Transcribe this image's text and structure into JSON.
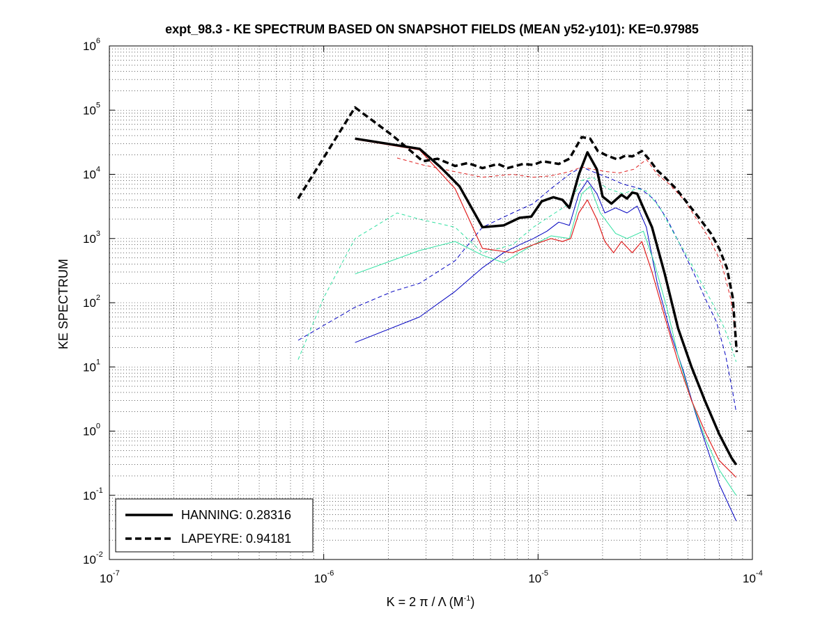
{
  "chart_data": {
    "type": "line",
    "scale": "loglog",
    "title": "expt_98.3 - KE SPECTRUM BASED ON SNAPSHOT FIELDS (MEAN y52-y101): KE=0.97985",
    "xlabel": {
      "main": "K = 2 π / Λ  (M",
      "sup": "-1",
      "end": ")"
    },
    "ylabel": "KE SPECTRUM",
    "xlim": [
      1e-07,
      0.0001
    ],
    "ylim": [
      0.01,
      1000000
    ],
    "grid": true,
    "xticks": [
      {
        "value": 1e-07,
        "base": "10",
        "exp": "-7"
      },
      {
        "value": 1e-06,
        "base": "10",
        "exp": "-6"
      },
      {
        "value": 1e-05,
        "base": "10",
        "exp": "-5"
      },
      {
        "value": 0.0001,
        "base": "10",
        "exp": "-4"
      }
    ],
    "yticks": [
      {
        "value": 0.01,
        "base": "10",
        "exp": "-2"
      },
      {
        "value": 0.1,
        "base": "10",
        "exp": "-1"
      },
      {
        "value": 1,
        "base": "10",
        "exp": "0"
      },
      {
        "value": 10,
        "base": "10",
        "exp": "1"
      },
      {
        "value": 100,
        "base": "10",
        "exp": "2"
      },
      {
        "value": 1000,
        "base": "10",
        "exp": "3"
      },
      {
        "value": 10000,
        "base": "10",
        "exp": "4"
      },
      {
        "value": 100000,
        "base": "10",
        "exp": "5"
      },
      {
        "value": 1000000,
        "base": "10",
        "exp": "6"
      }
    ],
    "legend": {
      "position": "bottom-left",
      "entries": [
        {
          "label": "HANNING: 0.28316",
          "style": "solid",
          "color": "#000000"
        },
        {
          "label": "LAPEYRE: 0.94181",
          "style": "dashed",
          "color": "#000000"
        }
      ]
    },
    "series": [
      {
        "name": "LAPEYRE",
        "in_legend": true,
        "color": "#000000",
        "dash": "9,5",
        "width": 3.5,
        "points": [
          [
            7.6e-07,
            4200
          ],
          [
            1.4e-06,
            110000
          ],
          [
            2.1e-06,
            40000
          ],
          [
            2.9e-06,
            16000
          ],
          [
            3.4e-06,
            17500
          ],
          [
            4.1e-06,
            13500
          ],
          [
            4.7e-06,
            15000
          ],
          [
            5.5e-06,
            12500
          ],
          [
            6.5e-06,
            14500
          ],
          [
            7.2e-06,
            12500
          ],
          [
            8.5e-06,
            14500
          ],
          [
            9.5e-06,
            14000
          ],
          [
            1.05e-05,
            16000
          ],
          [
            1.25e-05,
            14500
          ],
          [
            1.4e-05,
            17500
          ],
          [
            1.6e-05,
            38000
          ],
          [
            1.75e-05,
            36000
          ],
          [
            1.9e-05,
            23000
          ],
          [
            2.1e-05,
            19500
          ],
          [
            2.35e-05,
            17000
          ],
          [
            2.55e-05,
            19500
          ],
          [
            2.75e-05,
            19000
          ],
          [
            3.05e-05,
            23000
          ],
          [
            3.3e-05,
            17000
          ],
          [
            3.6e-05,
            11500
          ],
          [
            3.9e-05,
            9000
          ],
          [
            4.4e-05,
            6000
          ],
          [
            5e-05,
            3500
          ],
          [
            5.7e-05,
            2000
          ],
          [
            6.4e-05,
            1200
          ],
          [
            7e-05,
            700
          ],
          [
            7.6e-05,
            350
          ],
          [
            8.1e-05,
            120
          ],
          [
            8.45e-05,
            17
          ]
        ]
      },
      {
        "name": "HANNING",
        "in_legend": true,
        "color": "#000000",
        "dash": "",
        "width": 3.5,
        "points": [
          [
            1.4e-06,
            36000
          ],
          [
            2.8e-06,
            25000
          ],
          [
            3.5e-06,
            13000
          ],
          [
            4.3e-06,
            6500
          ],
          [
            5.5e-06,
            1500
          ],
          [
            6.9e-06,
            1600
          ],
          [
            8.2e-06,
            2100
          ],
          [
            9.3e-06,
            2200
          ],
          [
            1.04e-05,
            3800
          ],
          [
            1.18e-05,
            4400
          ],
          [
            1.3e-05,
            4000
          ],
          [
            1.4e-05,
            3000
          ],
          [
            1.55e-05,
            10000
          ],
          [
            1.7e-05,
            22000
          ],
          [
            1.88e-05,
            12000
          ],
          [
            2e-05,
            4500
          ],
          [
            2.2e-05,
            3500
          ],
          [
            2.45e-05,
            4800
          ],
          [
            2.6e-05,
            4200
          ],
          [
            2.75e-05,
            5200
          ],
          [
            2.9e-05,
            5000
          ],
          [
            3.1e-05,
            3000
          ],
          [
            3.4e-05,
            1500
          ],
          [
            3.9e-05,
            280
          ],
          [
            4.5e-05,
            40
          ],
          [
            5.2e-05,
            10
          ],
          [
            6e-05,
            3
          ],
          [
            7e-05,
            0.9
          ],
          [
            8e-05,
            0.38
          ],
          [
            8.4e-05,
            0.3
          ]
        ]
      },
      {
        "name": "red-solid",
        "in_legend": false,
        "color": "#e02020",
        "dash": "",
        "width": 1.2,
        "points": [
          [
            1.4e-06,
            35000
          ],
          [
            2.8e-06,
            24000
          ],
          [
            4.1e-06,
            6000
          ],
          [
            5.5e-06,
            700
          ],
          [
            7.6e-06,
            600
          ],
          [
            9.5e-06,
            800
          ],
          [
            1.15e-05,
            1000
          ],
          [
            1.3e-05,
            900
          ],
          [
            1.42e-05,
            1000
          ],
          [
            1.55e-05,
            2500
          ],
          [
            1.7e-05,
            4000
          ],
          [
            1.88e-05,
            2000
          ],
          [
            2.05e-05,
            900
          ],
          [
            2.25e-05,
            600
          ],
          [
            2.45e-05,
            900
          ],
          [
            2.75e-05,
            600
          ],
          [
            3.05e-05,
            900
          ],
          [
            3.4e-05,
            300
          ],
          [
            3.9e-05,
            60
          ],
          [
            4.5e-05,
            12
          ],
          [
            5.2e-05,
            3
          ],
          [
            6e-05,
            1
          ],
          [
            7e-05,
            0.35
          ],
          [
            8.4e-05,
            0.19
          ]
        ]
      },
      {
        "name": "red-dashed",
        "in_legend": false,
        "color": "#e02020",
        "dash": "5,4",
        "width": 1,
        "points": [
          [
            2.2e-06,
            18000
          ],
          [
            2.9e-06,
            14000
          ],
          [
            4.1e-06,
            11000
          ],
          [
            5.5e-06,
            9000
          ],
          [
            7.6e-06,
            10000
          ],
          [
            9.5e-06,
            9000
          ],
          [
            1.15e-05,
            9500
          ],
          [
            1.4e-05,
            11000
          ],
          [
            1.6e-05,
            13000
          ],
          [
            1.8e-05,
            12000
          ],
          [
            2.1e-05,
            11000
          ],
          [
            2.4e-05,
            10500
          ],
          [
            2.8e-05,
            12000
          ],
          [
            3.2e-05,
            17000
          ],
          [
            3.6e-05,
            10000
          ],
          [
            4.1e-05,
            7000
          ],
          [
            4.8e-05,
            4000
          ],
          [
            5.5e-05,
            2000
          ],
          [
            6.3e-05,
            1000
          ],
          [
            7.2e-05,
            400
          ],
          [
            7.9e-05,
            120
          ],
          [
            8.3e-05,
            40
          ]
        ]
      },
      {
        "name": "cyan-solid",
        "in_legend": false,
        "color": "#30e0a0",
        "dash": "",
        "width": 1,
        "points": [
          [
            1.4e-06,
            280
          ],
          [
            2.8e-06,
            650
          ],
          [
            4.1e-06,
            900
          ],
          [
            5.5e-06,
            550
          ],
          [
            6.9e-06,
            420
          ],
          [
            8.2e-06,
            600
          ],
          [
            9.5e-06,
            800
          ],
          [
            1.15e-05,
            1100
          ],
          [
            1.4e-05,
            1000
          ],
          [
            1.6e-05,
            5000
          ],
          [
            1.75e-05,
            6500
          ],
          [
            1.95e-05,
            2500
          ],
          [
            2.3e-05,
            1200
          ],
          [
            2.6e-05,
            1000
          ],
          [
            3.1e-05,
            1300
          ],
          [
            3.5e-05,
            400
          ],
          [
            4e-05,
            80
          ],
          [
            4.5e-05,
            15
          ],
          [
            5.2e-05,
            3
          ],
          [
            6e-05,
            0.8
          ],
          [
            7e-05,
            0.25
          ],
          [
            8.4e-05,
            0.1
          ]
        ]
      },
      {
        "name": "cyan-dashed",
        "in_legend": false,
        "color": "#30e0a0",
        "dash": "5,4",
        "width": 1,
        "points": [
          [
            7.6e-07,
            13
          ],
          [
            1e-06,
            120
          ],
          [
            1.4e-06,
            1000
          ],
          [
            2.2e-06,
            2500
          ],
          [
            2.8e-06,
            2000
          ],
          [
            4.1e-06,
            1500
          ],
          [
            5.5e-06,
            600
          ],
          [
            7.6e-06,
            800
          ],
          [
            9.5e-06,
            1500
          ],
          [
            1.2e-05,
            2500
          ],
          [
            1.4e-05,
            3500
          ],
          [
            1.6e-05,
            8000
          ],
          [
            1.8e-05,
            9000
          ],
          [
            2.1e-05,
            6000
          ],
          [
            2.5e-05,
            5000
          ],
          [
            2.9e-05,
            6000
          ],
          [
            3.2e-05,
            5500
          ],
          [
            3.7e-05,
            3000
          ],
          [
            4.3e-05,
            1200
          ],
          [
            5e-05,
            500
          ],
          [
            5.8e-05,
            200
          ],
          [
            6.6e-05,
            90
          ],
          [
            7.4e-05,
            40
          ],
          [
            8e-05,
            20
          ],
          [
            8.4e-05,
            12
          ]
        ]
      },
      {
        "name": "blue-solid",
        "in_legend": false,
        "color": "#0000c0",
        "dash": "",
        "width": 1,
        "points": [
          [
            1.4e-06,
            24
          ],
          [
            2.8e-06,
            60
          ],
          [
            4.1e-06,
            150
          ],
          [
            5.5e-06,
            350
          ],
          [
            6.9e-06,
            600
          ],
          [
            8.2e-06,
            800
          ],
          [
            9.5e-06,
            1000
          ],
          [
            1.1e-05,
            1300
          ],
          [
            1.25e-05,
            1800
          ],
          [
            1.4e-05,
            1600
          ],
          [
            1.55e-05,
            5000
          ],
          [
            1.7e-05,
            8000
          ],
          [
            1.88e-05,
            5000
          ],
          [
            2.05e-05,
            2500
          ],
          [
            2.3e-05,
            3000
          ],
          [
            2.6e-05,
            2500
          ],
          [
            2.9e-05,
            3200
          ],
          [
            3.2e-05,
            1500
          ],
          [
            3.6e-05,
            200
          ],
          [
            4.2e-05,
            30
          ],
          [
            4.8e-05,
            8
          ],
          [
            5.4e-05,
            2
          ],
          [
            6.2e-05,
            0.5
          ],
          [
            7e-05,
            0.15
          ],
          [
            8.4e-05,
            0.04
          ]
        ]
      },
      {
        "name": "blue-dashed",
        "in_legend": false,
        "color": "#0000c0",
        "dash": "6,4",
        "width": 1,
        "points": [
          [
            7.6e-07,
            26
          ],
          [
            1.4e-06,
            85
          ],
          [
            2.1e-06,
            150
          ],
          [
            2.8e-06,
            200
          ],
          [
            4.1e-06,
            450
          ],
          [
            5.5e-06,
            1500
          ],
          [
            7.6e-06,
            2500
          ],
          [
            9.5e-06,
            3500
          ],
          [
            1.15e-05,
            6000
          ],
          [
            1.4e-05,
            10000
          ],
          [
            1.6e-05,
            13000
          ],
          [
            1.8e-05,
            11000
          ],
          [
            2.1e-05,
            9000
          ],
          [
            2.5e-05,
            7000
          ],
          [
            3e-05,
            6000
          ],
          [
            3.5e-05,
            4000
          ],
          [
            4e-05,
            2000
          ],
          [
            4.6e-05,
            800
          ],
          [
            5.3e-05,
            300
          ],
          [
            6e-05,
            120
          ],
          [
            6.8e-05,
            50
          ],
          [
            7.5e-05,
            15
          ],
          [
            8.1e-05,
            4
          ],
          [
            8.4e-05,
            2
          ]
        ]
      }
    ]
  }
}
